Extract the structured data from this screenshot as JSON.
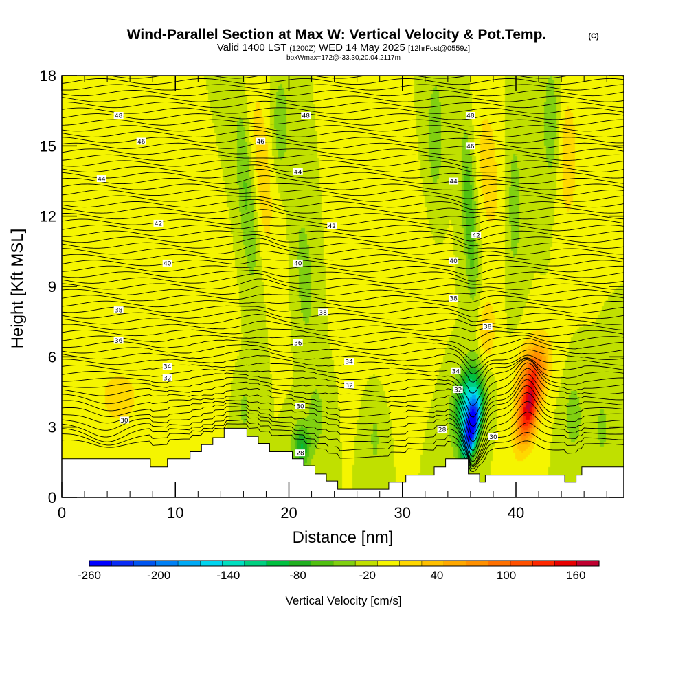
{
  "title": {
    "main": "Wind-Parallel Section at Max W: Vertical Velocity & Pot.Temp.",
    "copyright": "(C)",
    "line2_a": "Valid 1400 LST",
    "line2_b": "(1200Z)",
    "line2_c": "WED 14 May 2025",
    "line2_d": "[12hrFcst@0559z]",
    "line3": "boxWmax=172@-33.30,20.04,2117m"
  },
  "chart_data": {
    "type": "heatmap",
    "title": "Wind-Parallel Section at Max W: Vertical Velocity & Pot.Temp.",
    "xlabel": "Distance [nm]",
    "ylabel": "Height [Kft MSL]",
    "xlim": [
      0,
      49.5
    ],
    "ylim": [
      0,
      18
    ],
    "x_ticks": [
      0,
      10,
      20,
      30,
      40
    ],
    "y_ticks": [
      0,
      3,
      6,
      9,
      12,
      15,
      18
    ],
    "grid": false,
    "colorbar": {
      "label": "Vertical Velocity [cm/s]",
      "tick_labels": [
        "-260",
        "-200",
        "-140",
        "-80",
        "-20",
        "40",
        "100",
        "160"
      ],
      "levels": [
        -260,
        -240,
        -220,
        -200,
        -180,
        -160,
        -140,
        -120,
        -100,
        -80,
        -60,
        -40,
        -20,
        0,
        20,
        40,
        60,
        80,
        100,
        120,
        140,
        160,
        180
      ],
      "colors": [
        "#0000ff",
        "#0a2cf5",
        "#0055f0",
        "#0080f5",
        "#00aaf5",
        "#00d5f0",
        "#00e0c0",
        "#00d080",
        "#00c040",
        "#20b020",
        "#50c010",
        "#80d010",
        "#c0e000",
        "#f5f500",
        "#ffd800",
        "#ffc000",
        "#ffa800",
        "#ff9000",
        "#ff7000",
        "#ff5000",
        "#ff2800",
        "#e80000",
        "#c00030"
      ]
    },
    "background_velocity": 0,
    "velocity_features": [
      {
        "x": 36.0,
        "y": 3.0,
        "w": -260,
        "sx": 0.7,
        "sy": 1.3,
        "tilt": 0.35
      },
      {
        "x": 35.6,
        "y": 4.3,
        "w": -120,
        "sx": 1.1,
        "sy": 1.6,
        "tilt": 0.35
      },
      {
        "x": 41.0,
        "y": 3.8,
        "w": 172,
        "sx": 0.9,
        "sy": 1.5,
        "tilt": 0.3
      },
      {
        "x": 41.5,
        "y": 5.6,
        "w": 90,
        "sx": 1.3,
        "sy": 1.3,
        "tilt": 0.3
      },
      {
        "x": 37.3,
        "y": 7.0,
        "w": 45,
        "sx": 0.8,
        "sy": 1.5,
        "tilt": 0.1
      },
      {
        "x": 16.2,
        "y": 13.0,
        "w": -45,
        "sx": 0.8,
        "sy": 4.0,
        "tilt": -0.15
      },
      {
        "x": 17.5,
        "y": 14.0,
        "w": 35,
        "sx": 1.0,
        "sy": 4.0,
        "tilt": -0.15
      },
      {
        "x": 21.3,
        "y": 9.5,
        "w": -40,
        "sx": 0.7,
        "sy": 2.5,
        "tilt": -0.1
      },
      {
        "x": 19.2,
        "y": 16.0,
        "w": -40,
        "sx": 0.7,
        "sy": 2.0,
        "tilt": 0
      },
      {
        "x": 21.0,
        "y": 2.2,
        "w": -80,
        "sx": 0.8,
        "sy": 1.0,
        "tilt": 0
      },
      {
        "x": 22.3,
        "y": 3.5,
        "w": -35,
        "sx": 0.7,
        "sy": 1.5,
        "tilt": 0
      },
      {
        "x": 35.8,
        "y": 12.0,
        "w": -60,
        "sx": 0.6,
        "sy": 3.5,
        "tilt": -0.1
      },
      {
        "x": 32.8,
        "y": 15.5,
        "w": -40,
        "sx": 0.7,
        "sy": 2.5,
        "tilt": 0
      },
      {
        "x": 37.5,
        "y": 14.0,
        "w": 35,
        "sx": 0.9,
        "sy": 3.0,
        "tilt": -0.1
      },
      {
        "x": 39.8,
        "y": 12.5,
        "w": -35,
        "sx": 0.6,
        "sy": 3.0,
        "tilt": 0
      },
      {
        "x": 43.0,
        "y": 16.0,
        "w": -40,
        "sx": 0.7,
        "sy": 2.5,
        "tilt": 0
      },
      {
        "x": 44.5,
        "y": 14.5,
        "w": 35,
        "sx": 0.9,
        "sy": 3.0,
        "tilt": 0
      },
      {
        "x": 5.0,
        "y": 4.3,
        "w": 35,
        "sx": 1.8,
        "sy": 1.2,
        "tilt": 0
      },
      {
        "x": 27.5,
        "y": 2.5,
        "w": -25,
        "sx": 0.6,
        "sy": 1.5,
        "tilt": 0
      },
      {
        "x": 45.0,
        "y": 3.5,
        "w": -35,
        "sx": 0.8,
        "sy": 1.5,
        "tilt": 0
      },
      {
        "x": 47.5,
        "y": 3.0,
        "w": -30,
        "sx": 0.6,
        "sy": 1.3,
        "tilt": 0
      },
      {
        "x": 16.0,
        "y": 3.8,
        "w": -25,
        "sx": 0.6,
        "sy": 1.3,
        "tilt": 0
      },
      {
        "x": 12.0,
        "y": 8.5,
        "w": 20,
        "sx": 2.0,
        "sy": 2.5,
        "tilt": 0
      },
      {
        "x": 29.0,
        "y": 10.0,
        "w": 15,
        "sx": 2.5,
        "sy": 3.0,
        "tilt": 0
      }
    ],
    "terrain": {
      "x": [
        0,
        7.8,
        7.8,
        9.3,
        9.3,
        11.3,
        11.3,
        12.3,
        12.3,
        13.3,
        13.3,
        14.3,
        14.3,
        16.3,
        16.3,
        17.3,
        17.3,
        18.3,
        18.3,
        20.3,
        20.3,
        21.3,
        21.3,
        22.3,
        22.3,
        23.3,
        23.3,
        24.3,
        24.3,
        28.8,
        28.8,
        30.3,
        30.3,
        32.8,
        32.8,
        33.8,
        33.8,
        35.8,
        35.8,
        36.8,
        36.8,
        37.3,
        37.3,
        44.3,
        44.3,
        45.3,
        45.3,
        45.8,
        45.8,
        48.3,
        48.3,
        49.5
      ],
      "y": [
        1.65,
        1.65,
        1.3,
        1.3,
        1.65,
        1.65,
        1.95,
        1.95,
        2.25,
        2.25,
        2.55,
        2.55,
        2.95,
        2.95,
        2.6,
        2.6,
        2.3,
        2.3,
        1.95,
        1.95,
        1.65,
        1.65,
        1.35,
        1.35,
        1.0,
        1.0,
        0.7,
        0.7,
        0.35,
        0.35,
        0.65,
        0.65,
        0.95,
        0.95,
        1.3,
        1.3,
        1.65,
        1.65,
        1.0,
        1.0,
        0.65,
        0.65,
        0.95,
        0.95,
        0.65,
        0.65,
        0.95,
        0.95,
        1.3,
        1.3,
        1.3,
        1.3
      ]
    },
    "potential_temperature": {
      "units": "degF",
      "base_height": 3.0,
      "spacing_kft_per_degF": 0.25,
      "base_value": 29,
      "count": 68,
      "disturbances": [
        {
          "x": 36.2,
          "y": 3.8,
          "amp": -2.0,
          "sx": 1.0,
          "sy": 2.5
        },
        {
          "x": 41.0,
          "y": 4.0,
          "amp": 1.2,
          "sx": 1.2,
          "sy": 2.0
        },
        {
          "x": 4.0,
          "y": 3.2,
          "amp": -0.6,
          "sx": 2.0,
          "sy": 1.2
        },
        {
          "x": 17.5,
          "y": 12.0,
          "amp": 0.5,
          "sx": 1.5,
          "sy": 5.0
        },
        {
          "x": 36.0,
          "y": 12.0,
          "amp": -0.5,
          "sx": 1.2,
          "sy": 4.0
        }
      ],
      "labels": [
        {
          "value": "48",
          "x": 5.0,
          "y": 16.3
        },
        {
          "value": "48",
          "x": 21.5,
          "y": 16.3
        },
        {
          "value": "48",
          "x": 36.0,
          "y": 16.3
        },
        {
          "value": "46",
          "x": 7.0,
          "y": 15.2
        },
        {
          "value": "46",
          "x": 17.5,
          "y": 15.2
        },
        {
          "value": "46",
          "x": 36.0,
          "y": 15.0
        },
        {
          "value": "44",
          "x": 3.5,
          "y": 13.6
        },
        {
          "value": "44",
          "x": 20.8,
          "y": 13.9
        },
        {
          "value": "44",
          "x": 34.5,
          "y": 13.5
        },
        {
          "value": "42",
          "x": 8.5,
          "y": 11.7
        },
        {
          "value": "42",
          "x": 23.8,
          "y": 11.6
        },
        {
          "value": "42",
          "x": 36.5,
          "y": 11.2
        },
        {
          "value": "40",
          "x": 9.3,
          "y": 10.0
        },
        {
          "value": "40",
          "x": 20.8,
          "y": 10.0
        },
        {
          "value": "40",
          "x": 34.5,
          "y": 10.1
        },
        {
          "value": "38",
          "x": 5.0,
          "y": 8.0
        },
        {
          "value": "38",
          "x": 23.0,
          "y": 7.9
        },
        {
          "value": "38",
          "x": 34.5,
          "y": 8.5
        },
        {
          "value": "38",
          "x": 37.5,
          "y": 7.3
        },
        {
          "value": "36",
          "x": 5.0,
          "y": 6.7
        },
        {
          "value": "36",
          "x": 20.8,
          "y": 6.6
        },
        {
          "value": "34",
          "x": 9.3,
          "y": 5.6
        },
        {
          "value": "34",
          "x": 25.3,
          "y": 5.8
        },
        {
          "value": "34",
          "x": 34.7,
          "y": 5.4
        },
        {
          "value": "32",
          "x": 9.3,
          "y": 5.1
        },
        {
          "value": "32",
          "x": 25.3,
          "y": 4.8
        },
        {
          "value": "32",
          "x": 34.9,
          "y": 4.6
        },
        {
          "value": "30",
          "x": 5.5,
          "y": 3.3
        },
        {
          "value": "30",
          "x": 21.0,
          "y": 3.9
        },
        {
          "value": "30",
          "x": 38.0,
          "y": 2.6
        },
        {
          "value": "28",
          "x": 33.5,
          "y": 2.9
        },
        {
          "value": "28",
          "x": 21.0,
          "y": 1.9
        }
      ]
    }
  }
}
